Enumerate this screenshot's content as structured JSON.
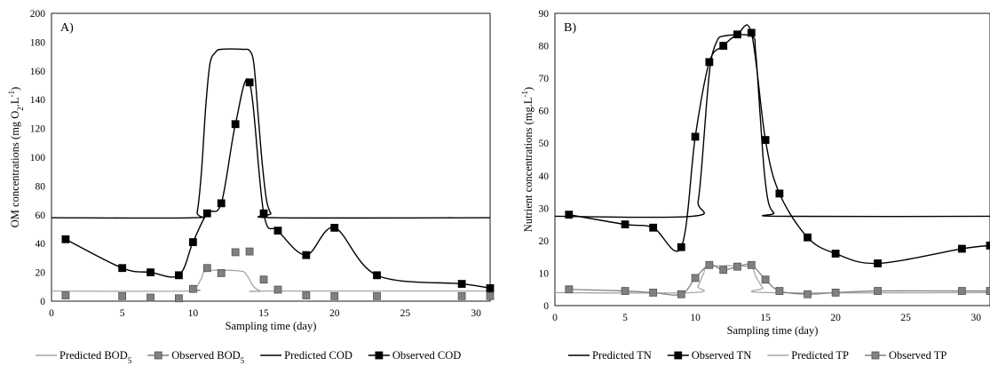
{
  "chart_data": [
    {
      "type": "line",
      "panel_label": "A)",
      "xlabel": "Sampling time (day)",
      "ylabel": {
        "base": "OM concentrations (mg O",
        "sub": "2",
        "mid": ".L",
        "sup": "-1",
        "end": ")"
      },
      "xlim": [
        0,
        31
      ],
      "ylim": [
        0,
        200
      ],
      "xticks": [
        0,
        5,
        10,
        15,
        20,
        25,
        30
      ],
      "yticks": [
        0,
        20,
        40,
        60,
        80,
        100,
        120,
        140,
        160,
        180,
        200
      ],
      "grid": false,
      "series": [
        {
          "key": "pred_bod",
          "style": "line",
          "color": "#a6a6a6",
          "x": [
            0,
            9.6,
            10.2,
            10.6,
            11,
            13.3,
            13.8,
            14.3,
            14.8,
            15.3,
            31
          ],
          "y": [
            7,
            7,
            9,
            16,
            21,
            21,
            18,
            10,
            7,
            7,
            7
          ]
        },
        {
          "key": "obs_bod",
          "style": "markers",
          "color": "#808080",
          "x": [
            1,
            5,
            7,
            9,
            10,
            11,
            12,
            13,
            14,
            15,
            16,
            18,
            20,
            23,
            29,
            31
          ],
          "y": [
            4,
            3.5,
            2.5,
            2,
            8.5,
            23,
            19.5,
            34,
            34.5,
            15,
            8,
            4,
            3.5,
            3.5,
            3.5,
            3.5
          ]
        },
        {
          "key": "pred_cod",
          "style": "line",
          "color": "#000000",
          "x": [
            0,
            10,
            10.3,
            10.6,
            10.9,
            11.2,
            11.6,
            12,
            13.5,
            14,
            14.3,
            14.6,
            14.9,
            15.2,
            15.5,
            15.8,
            31
          ],
          "y": [
            58,
            58,
            62,
            90,
            135,
            165,
            173,
            175,
            175,
            174,
            165,
            130,
            95,
            70,
            61,
            58,
            58
          ]
        },
        {
          "key": "obs_cod",
          "style": "markers+curve",
          "color": "#000000",
          "x": [
            1,
            5,
            7,
            9,
            10,
            11,
            12,
            13,
            14,
            15,
            16,
            18,
            20,
            23,
            29,
            31
          ],
          "y": [
            43,
            23,
            20,
            18,
            41,
            61,
            68,
            123,
            152,
            61,
            49,
            32,
            51,
            18,
            12,
            9
          ]
        }
      ]
    },
    {
      "type": "line",
      "panel_label": "B)",
      "xlabel": "Sampling time (day)",
      "ylabel": {
        "base": "Nutrient concentrations (mg.L",
        "sub": "",
        "mid": "",
        "sup": "-1",
        "end": ")"
      },
      "xlim": [
        0,
        31
      ],
      "ylim": [
        0,
        90
      ],
      "xticks": [
        0,
        5,
        10,
        15,
        20,
        25,
        30
      ],
      "yticks": [
        0,
        10,
        20,
        30,
        40,
        50,
        60,
        70,
        80,
        90
      ],
      "grid": false,
      "series": [
        {
          "key": "pred_tn",
          "style": "line",
          "color": "#000000",
          "x": [
            0,
            9.8,
            10.2,
            10.5,
            10.8,
            11.1,
            11.5,
            12,
            14,
            14.3,
            14.6,
            14.9,
            15.2,
            15.6,
            16,
            31
          ],
          "y": [
            27.5,
            27.5,
            32,
            45,
            62,
            75,
            81,
            83,
            83,
            78,
            60,
            42,
            32,
            28.5,
            27.5,
            27.5
          ]
        },
        {
          "key": "obs_tn",
          "style": "markers+curve",
          "color": "#000000",
          "x": [
            1,
            5,
            7,
            9,
            10,
            11,
            12,
            13,
            14,
            15,
            16,
            18,
            20,
            23,
            29,
            31
          ],
          "y": [
            28,
            25,
            24,
            18,
            52,
            75,
            80,
            83.5,
            84,
            51,
            34.5,
            21,
            16,
            13,
            17.5,
            18.5
          ]
        },
        {
          "key": "pred_tp",
          "style": "line",
          "color": "#a6a6a6",
          "x": [
            0,
            9.8,
            10.2,
            10.6,
            11,
            13.8,
            14.3,
            14.8,
            15.3,
            31
          ],
          "y": [
            4,
            4,
            6,
            10,
            12,
            12,
            9,
            5.5,
            4,
            4
          ]
        },
        {
          "key": "obs_tp",
          "style": "markers+curve",
          "color": "#808080",
          "x": [
            1,
            5,
            7,
            9,
            10,
            11,
            12,
            13,
            14,
            15,
            16,
            18,
            20,
            23,
            29,
            31
          ],
          "y": [
            5,
            4.5,
            4,
            3.5,
            8.5,
            12.5,
            11,
            12,
            12.5,
            8,
            4.5,
            3.5,
            4,
            4.5,
            4.5,
            4.5
          ]
        }
      ]
    }
  ],
  "legend": {
    "a": [
      {
        "series": "pred_bod",
        "kind": "line",
        "color": "#a6a6a6",
        "label": "Predicted BOD",
        "sub": "5"
      },
      {
        "series": "obs_bod",
        "kind": "marker",
        "color": "#808080",
        "label": "Observed BOD",
        "sub": "5"
      },
      {
        "series": "pred_cod",
        "kind": "line",
        "color": "#000000",
        "label": "Predicted COD",
        "sub": ""
      },
      {
        "series": "obs_cod",
        "kind": "marker",
        "color": "#000000",
        "label": "Observed COD",
        "sub": ""
      }
    ],
    "b": [
      {
        "series": "pred_tn",
        "kind": "line",
        "color": "#000000",
        "label": "Predicted TN",
        "sub": ""
      },
      {
        "series": "obs_tn",
        "kind": "marker",
        "color": "#000000",
        "label": "Observed TN",
        "sub": ""
      },
      {
        "series": "pred_tp",
        "kind": "line",
        "color": "#a6a6a6",
        "label": "Predicted TP",
        "sub": ""
      },
      {
        "series": "obs_tp",
        "kind": "marker",
        "color": "#808080",
        "label": "Observed TP",
        "sub": ""
      }
    ]
  }
}
